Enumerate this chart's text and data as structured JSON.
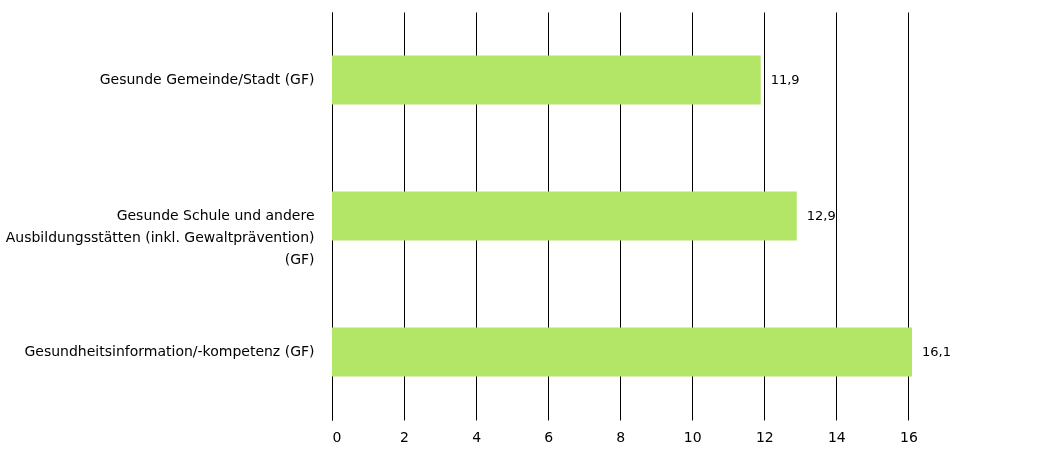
{
  "chart_data": {
    "type": "bar",
    "orientation": "horizontal",
    "categories": [
      "Gesunde Gemeinde/Stadt (GF)",
      "Gesunde Schule und andere Ausbildungsstätten (inkl. Gewaltprävention) (GF)",
      "Gesundheitsinformation/-kompetenz (GF)"
    ],
    "values": [
      11.9,
      12.9,
      16.1
    ],
    "value_labels": [
      "11,9",
      "12,9",
      "16,1"
    ],
    "color": "#b3e666",
    "xlim": [
      0,
      16.1
    ],
    "xticks": [
      0,
      2,
      4,
      6,
      8,
      10,
      12,
      14,
      16
    ],
    "grid": "x"
  }
}
